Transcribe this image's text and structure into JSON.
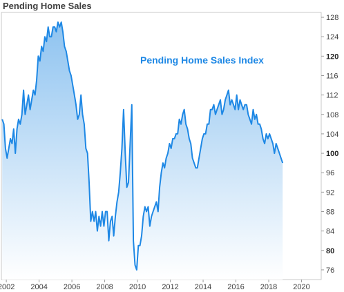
{
  "title": "Pending Home Sales",
  "chart_data": {
    "type": "area",
    "title": "Pending Home Sales",
    "xlabel": "",
    "ylabel": "",
    "xlim": [
      2001.7,
      2021.2
    ],
    "ylim": [
      74,
      129
    ],
    "y_ticks": [
      76,
      80,
      84,
      88,
      92,
      96,
      100,
      104,
      108,
      112,
      116,
      120,
      124,
      128
    ],
    "y_ticks_bold": [
      80,
      100,
      120
    ],
    "x_ticks": [
      2002,
      2004,
      2006,
      2008,
      2010,
      2012,
      2014,
      2016,
      2018,
      2020
    ],
    "x_tick_labels": [
      "2002",
      "2004",
      "2006",
      "2008",
      "2010",
      "2012",
      "2014",
      "2016",
      "2018",
      "2020"
    ],
    "y_axis_position": "right",
    "grid": false,
    "annotation": "Pending Home Sales Index",
    "colors": {
      "line": "#1e88e5",
      "fill_top": "#8ec3f0",
      "fill_bottom": "#ffffff"
    },
    "series": [
      {
        "x": [
          2001.75,
          2001.85,
          2001.95,
          2002.05,
          2002.15,
          2002.25,
          2002.35,
          2002.45,
          2002.55,
          2002.65,
          2002.75,
          2002.85,
          2002.95,
          2003.05,
          2003.15,
          2003.25,
          2003.35,
          2003.45,
          2003.55,
          2003.65,
          2003.75,
          2003.85,
          2003.95,
          2004.05,
          2004.15,
          2004.25,
          2004.35,
          2004.45,
          2004.55,
          2004.65,
          2004.75,
          2004.85,
          2004.95,
          2005.05,
          2005.15,
          2005.25,
          2005.35,
          2005.45,
          2005.55,
          2005.65,
          2005.75,
          2005.85,
          2005.95,
          2006.05,
          2006.15,
          2006.25,
          2006.35,
          2006.45,
          2006.55,
          2006.65,
          2006.75,
          2006.85,
          2006.95,
          2007.05,
          2007.15,
          2007.25,
          2007.35,
          2007.45,
          2007.55,
          2007.65,
          2007.75,
          2007.85,
          2007.95,
          2008.05,
          2008.15,
          2008.25,
          2008.35,
          2008.45,
          2008.55,
          2008.65,
          2008.75,
          2008.85,
          2008.95,
          2009.05,
          2009.15,
          2009.25,
          2009.35,
          2009.45,
          2009.55,
          2009.65,
          2009.75,
          2009.85,
          2009.95,
          2010.05,
          2010.15,
          2010.25,
          2010.35,
          2010.45,
          2010.55,
          2010.65,
          2010.75,
          2010.85,
          2010.95,
          2011.05,
          2011.15,
          2011.25,
          2011.35,
          2011.45,
          2011.55,
          2011.65,
          2011.75,
          2011.85,
          2011.95,
          2012.05,
          2012.15,
          2012.25,
          2012.35,
          2012.45,
          2012.55,
          2012.65,
          2012.75,
          2012.85,
          2012.95,
          2013.05,
          2013.15,
          2013.25,
          2013.35,
          2013.45,
          2013.55,
          2013.65,
          2013.75,
          2013.85,
          2013.95,
          2014.05,
          2014.15,
          2014.25,
          2014.35,
          2014.45,
          2014.55,
          2014.65,
          2014.75,
          2014.85,
          2014.95,
          2015.05,
          2015.15,
          2015.25,
          2015.35,
          2015.45,
          2015.55,
          2015.65,
          2015.75,
          2015.85,
          2015.95,
          2016.05,
          2016.15,
          2016.25,
          2016.35,
          2016.45,
          2016.55,
          2016.65,
          2016.75,
          2016.85,
          2016.95,
          2017.05,
          2017.15,
          2017.25,
          2017.35,
          2017.45,
          2017.55,
          2017.65,
          2017.75,
          2017.85,
          2017.95,
          2018.05,
          2018.15,
          2018.25,
          2018.35,
          2018.45,
          2018.55,
          2018.65,
          2018.75,
          2018.85
        ],
        "y": [
          107,
          106,
          101,
          99,
          101,
          103,
          102,
          105,
          100,
          105,
          107,
          106,
          108,
          113,
          108,
          110,
          112,
          109,
          111,
          113,
          112,
          115,
          120,
          119,
          122,
          121,
          124,
          123,
          126,
          124,
          124,
          126,
          126,
          125,
          127,
          126,
          127,
          125,
          122,
          121,
          119,
          117,
          116,
          114,
          112,
          110,
          107,
          108,
          112,
          108,
          106,
          101,
          100,
          94,
          86,
          88,
          86,
          88,
          84,
          87,
          85,
          88,
          85,
          88,
          88,
          82,
          86,
          87,
          83,
          87,
          90,
          92,
          96,
          101,
          109,
          100,
          93,
          94,
          102,
          110,
          82,
          77,
          76,
          81,
          81,
          83,
          87,
          89,
          88,
          89,
          85,
          87,
          88,
          89,
          90,
          88,
          93,
          96,
          98,
          97,
          99,
          100,
          102,
          101,
          103,
          103,
          104,
          104,
          107,
          106,
          108,
          109,
          106,
          105,
          103,
          102,
          99,
          98,
          97,
          97,
          99,
          101,
          103,
          104,
          104,
          106,
          106,
          109,
          109,
          110,
          108,
          109,
          110,
          111,
          108,
          109,
          111,
          112,
          113,
          110,
          111,
          110,
          109,
          112,
          109,
          111,
          110,
          109,
          110,
          110,
          108,
          107,
          106,
          109,
          107,
          108,
          106,
          106,
          105,
          103,
          102,
          104,
          103,
          104,
          103,
          102,
          100,
          102,
          101,
          100,
          99,
          98
        ]
      }
    ]
  }
}
